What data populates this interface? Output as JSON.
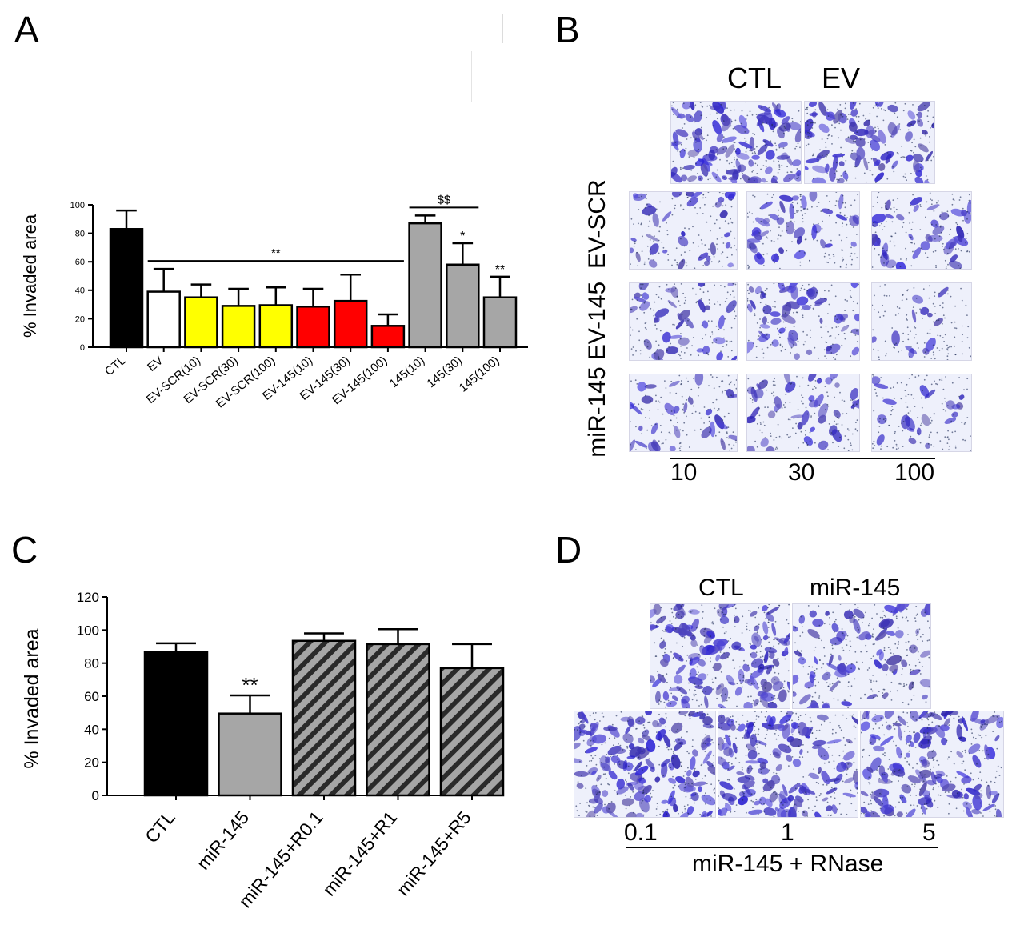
{
  "panels": {
    "a": "A",
    "b": "B",
    "c": "C",
    "d": "D"
  },
  "colors": {
    "black": "#000000",
    "white": "#ffffff",
    "yellow": "#ffff00",
    "red": "#ff0000",
    "gray": "#a6a6a6",
    "stain": "#4a3fbf"
  },
  "chart_data": [
    {
      "type": "bar",
      "panel": "A",
      "title": "",
      "xlabel": "",
      "ylabel": "% Invaded area",
      "ylim": [
        0,
        100
      ],
      "yticks": [
        0,
        20,
        40,
        60,
        80,
        100
      ],
      "categories": [
        "CTL",
        "EV",
        "EV-SCR(10)",
        "EV-SCR(30)",
        "EV-SCR(100)",
        "EV-145(10)",
        "EV-145(30)",
        "EV-145(100)",
        "145(10)",
        "145(30)",
        "145(100)"
      ],
      "values": [
        83,
        39,
        35,
        29,
        29.5,
        28.5,
        32.5,
        15,
        87,
        58,
        35
      ],
      "errors": [
        13,
        16,
        9,
        12,
        12.5,
        12.5,
        18.5,
        8,
        5.5,
        15,
        14.5
      ],
      "fills": [
        "black",
        "white",
        "yellow",
        "yellow",
        "yellow",
        "red",
        "red",
        "red",
        "gray",
        "gray",
        "gray"
      ],
      "annotations": [
        {
          "text": "**",
          "type": "bracket",
          "from": 1,
          "to": 7
        },
        {
          "text": "$$",
          "type": "bracket",
          "from": 8,
          "to": 9
        },
        {
          "text": "*",
          "type": "bar",
          "index": 9
        },
        {
          "text": "**",
          "type": "bar",
          "index": 10
        }
      ]
    },
    {
      "type": "bar",
      "panel": "C",
      "title": "",
      "xlabel": "",
      "ylabel": "% Invaded area",
      "ylim": [
        0,
        120
      ],
      "yticks": [
        0,
        20,
        40,
        60,
        80,
        100,
        120
      ],
      "categories": [
        "CTL",
        "miR-145",
        "miR-145+R0.1",
        "miR-145+R1",
        "miR-145+R5"
      ],
      "values": [
        86.5,
        49.5,
        93.5,
        91.5,
        77
      ],
      "errors": [
        5.5,
        11,
        4.5,
        9,
        14.5
      ],
      "fills": [
        "black",
        "gray",
        "hatch",
        "hatch",
        "hatch"
      ],
      "annotations": [
        {
          "text": "**",
          "type": "bar",
          "index": 1
        }
      ]
    }
  ],
  "panel_b": {
    "top_labels": [
      "CTL",
      "EV"
    ],
    "row_labels": [
      "EV-SCR",
      "EV-145",
      "miR-145"
    ],
    "dose_labels": [
      "10",
      "30",
      "100"
    ]
  },
  "panel_d": {
    "top_labels": [
      "CTL",
      "miR-145"
    ],
    "dose_labels": [
      "0.1",
      "1",
      "5"
    ],
    "axis_label": "miR-145 + RNase"
  }
}
